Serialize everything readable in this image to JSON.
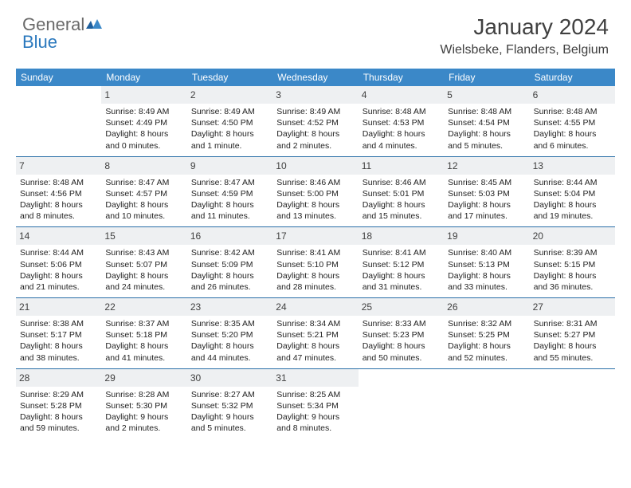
{
  "logo": {
    "part1": "General",
    "part2": "Blue"
  },
  "title": "January 2024",
  "location": "Wielsbeke, Flanders, Belgium",
  "colors": {
    "header_bg": "#3b88c8",
    "week_border": "#2a6fa8",
    "daynum_bg": "#eef0f2",
    "text": "#222222",
    "title_text": "#404040"
  },
  "weekdays": [
    "Sunday",
    "Monday",
    "Tuesday",
    "Wednesday",
    "Thursday",
    "Friday",
    "Saturday"
  ],
  "weeks": [
    [
      null,
      {
        "n": "1",
        "sr": "Sunrise: 8:49 AM",
        "ss": "Sunset: 4:49 PM",
        "d1": "Daylight: 8 hours",
        "d2": "and 0 minutes."
      },
      {
        "n": "2",
        "sr": "Sunrise: 8:49 AM",
        "ss": "Sunset: 4:50 PM",
        "d1": "Daylight: 8 hours",
        "d2": "and 1 minute."
      },
      {
        "n": "3",
        "sr": "Sunrise: 8:49 AM",
        "ss": "Sunset: 4:52 PM",
        "d1": "Daylight: 8 hours",
        "d2": "and 2 minutes."
      },
      {
        "n": "4",
        "sr": "Sunrise: 8:48 AM",
        "ss": "Sunset: 4:53 PM",
        "d1": "Daylight: 8 hours",
        "d2": "and 4 minutes."
      },
      {
        "n": "5",
        "sr": "Sunrise: 8:48 AM",
        "ss": "Sunset: 4:54 PM",
        "d1": "Daylight: 8 hours",
        "d2": "and 5 minutes."
      },
      {
        "n": "6",
        "sr": "Sunrise: 8:48 AM",
        "ss": "Sunset: 4:55 PM",
        "d1": "Daylight: 8 hours",
        "d2": "and 6 minutes."
      }
    ],
    [
      {
        "n": "7",
        "sr": "Sunrise: 8:48 AM",
        "ss": "Sunset: 4:56 PM",
        "d1": "Daylight: 8 hours",
        "d2": "and 8 minutes."
      },
      {
        "n": "8",
        "sr": "Sunrise: 8:47 AM",
        "ss": "Sunset: 4:57 PM",
        "d1": "Daylight: 8 hours",
        "d2": "and 10 minutes."
      },
      {
        "n": "9",
        "sr": "Sunrise: 8:47 AM",
        "ss": "Sunset: 4:59 PM",
        "d1": "Daylight: 8 hours",
        "d2": "and 11 minutes."
      },
      {
        "n": "10",
        "sr": "Sunrise: 8:46 AM",
        "ss": "Sunset: 5:00 PM",
        "d1": "Daylight: 8 hours",
        "d2": "and 13 minutes."
      },
      {
        "n": "11",
        "sr": "Sunrise: 8:46 AM",
        "ss": "Sunset: 5:01 PM",
        "d1": "Daylight: 8 hours",
        "d2": "and 15 minutes."
      },
      {
        "n": "12",
        "sr": "Sunrise: 8:45 AM",
        "ss": "Sunset: 5:03 PM",
        "d1": "Daylight: 8 hours",
        "d2": "and 17 minutes."
      },
      {
        "n": "13",
        "sr": "Sunrise: 8:44 AM",
        "ss": "Sunset: 5:04 PM",
        "d1": "Daylight: 8 hours",
        "d2": "and 19 minutes."
      }
    ],
    [
      {
        "n": "14",
        "sr": "Sunrise: 8:44 AM",
        "ss": "Sunset: 5:06 PM",
        "d1": "Daylight: 8 hours",
        "d2": "and 21 minutes."
      },
      {
        "n": "15",
        "sr": "Sunrise: 8:43 AM",
        "ss": "Sunset: 5:07 PM",
        "d1": "Daylight: 8 hours",
        "d2": "and 24 minutes."
      },
      {
        "n": "16",
        "sr": "Sunrise: 8:42 AM",
        "ss": "Sunset: 5:09 PM",
        "d1": "Daylight: 8 hours",
        "d2": "and 26 minutes."
      },
      {
        "n": "17",
        "sr": "Sunrise: 8:41 AM",
        "ss": "Sunset: 5:10 PM",
        "d1": "Daylight: 8 hours",
        "d2": "and 28 minutes."
      },
      {
        "n": "18",
        "sr": "Sunrise: 8:41 AM",
        "ss": "Sunset: 5:12 PM",
        "d1": "Daylight: 8 hours",
        "d2": "and 31 minutes."
      },
      {
        "n": "19",
        "sr": "Sunrise: 8:40 AM",
        "ss": "Sunset: 5:13 PM",
        "d1": "Daylight: 8 hours",
        "d2": "and 33 minutes."
      },
      {
        "n": "20",
        "sr": "Sunrise: 8:39 AM",
        "ss": "Sunset: 5:15 PM",
        "d1": "Daylight: 8 hours",
        "d2": "and 36 minutes."
      }
    ],
    [
      {
        "n": "21",
        "sr": "Sunrise: 8:38 AM",
        "ss": "Sunset: 5:17 PM",
        "d1": "Daylight: 8 hours",
        "d2": "and 38 minutes."
      },
      {
        "n": "22",
        "sr": "Sunrise: 8:37 AM",
        "ss": "Sunset: 5:18 PM",
        "d1": "Daylight: 8 hours",
        "d2": "and 41 minutes."
      },
      {
        "n": "23",
        "sr": "Sunrise: 8:35 AM",
        "ss": "Sunset: 5:20 PM",
        "d1": "Daylight: 8 hours",
        "d2": "and 44 minutes."
      },
      {
        "n": "24",
        "sr": "Sunrise: 8:34 AM",
        "ss": "Sunset: 5:21 PM",
        "d1": "Daylight: 8 hours",
        "d2": "and 47 minutes."
      },
      {
        "n": "25",
        "sr": "Sunrise: 8:33 AM",
        "ss": "Sunset: 5:23 PM",
        "d1": "Daylight: 8 hours",
        "d2": "and 50 minutes."
      },
      {
        "n": "26",
        "sr": "Sunrise: 8:32 AM",
        "ss": "Sunset: 5:25 PM",
        "d1": "Daylight: 8 hours",
        "d2": "and 52 minutes."
      },
      {
        "n": "27",
        "sr": "Sunrise: 8:31 AM",
        "ss": "Sunset: 5:27 PM",
        "d1": "Daylight: 8 hours",
        "d2": "and 55 minutes."
      }
    ],
    [
      {
        "n": "28",
        "sr": "Sunrise: 8:29 AM",
        "ss": "Sunset: 5:28 PM",
        "d1": "Daylight: 8 hours",
        "d2": "and 59 minutes."
      },
      {
        "n": "29",
        "sr": "Sunrise: 8:28 AM",
        "ss": "Sunset: 5:30 PM",
        "d1": "Daylight: 9 hours",
        "d2": "and 2 minutes."
      },
      {
        "n": "30",
        "sr": "Sunrise: 8:27 AM",
        "ss": "Sunset: 5:32 PM",
        "d1": "Daylight: 9 hours",
        "d2": "and 5 minutes."
      },
      {
        "n": "31",
        "sr": "Sunrise: 8:25 AM",
        "ss": "Sunset: 5:34 PM",
        "d1": "Daylight: 9 hours",
        "d2": "and 8 minutes."
      },
      null,
      null,
      null
    ]
  ]
}
